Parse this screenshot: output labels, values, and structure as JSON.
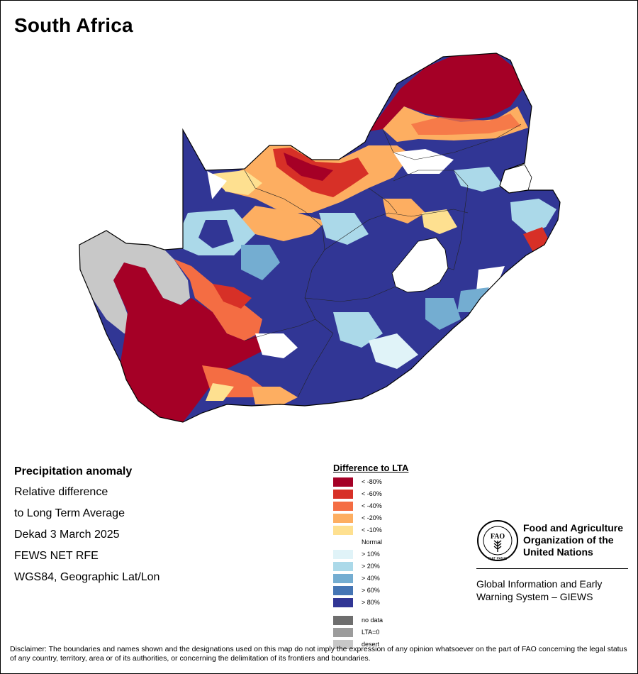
{
  "title": "South Africa",
  "info": {
    "heading": "Precipitation anomaly",
    "lines": [
      "Relative difference",
      "to Long Term Average",
      "Dekad 3 March 2025",
      "FEWS NET RFE",
      "WGS84, Geographic Lat/Lon"
    ]
  },
  "legend": {
    "title": "Difference to LTA",
    "classes": [
      {
        "label": "< -80%",
        "color": "#a50026"
      },
      {
        "label": "< -60%",
        "color": "#d73027"
      },
      {
        "label": "< -40%",
        "color": "#f46d43"
      },
      {
        "label": "< -20%",
        "color": "#fdae61"
      },
      {
        "label": "< -10%",
        "color": "#fee090"
      },
      {
        "label": "Normal",
        "color": "#ffffff"
      },
      {
        "label": "> 10%",
        "color": "#e0f3f8"
      },
      {
        "label": "> 20%",
        "color": "#abd9e9"
      },
      {
        "label": "> 40%",
        "color": "#74add1"
      },
      {
        "label": "> 60%",
        "color": "#4575b4"
      },
      {
        "label": "> 80%",
        "color": "#313695"
      }
    ],
    "extra": [
      {
        "label": "no data",
        "color": "#6e6e6e"
      },
      {
        "label": "LTA=0",
        "color": "#9c9c9c"
      },
      {
        "label": "desert",
        "color": "#c8c8c8"
      }
    ]
  },
  "organization": {
    "logo_text": "FAO",
    "logo_motto": "FIAT PANIS",
    "name_lines": [
      "Food and Agriculture",
      "Organization of the",
      "United Nations"
    ],
    "system_lines": [
      "Global Information and Early",
      "Warning System – GIEWS"
    ]
  },
  "disclaimer": "Disclaimer: The boundaries and names shown and the designations used on this map do not imply the expression of any opinion whatsoever on the part of FAO concerning the legal status of any country, territory, area or of its authorities, or concerning the delimitation of its frontiers and boundaries."
}
